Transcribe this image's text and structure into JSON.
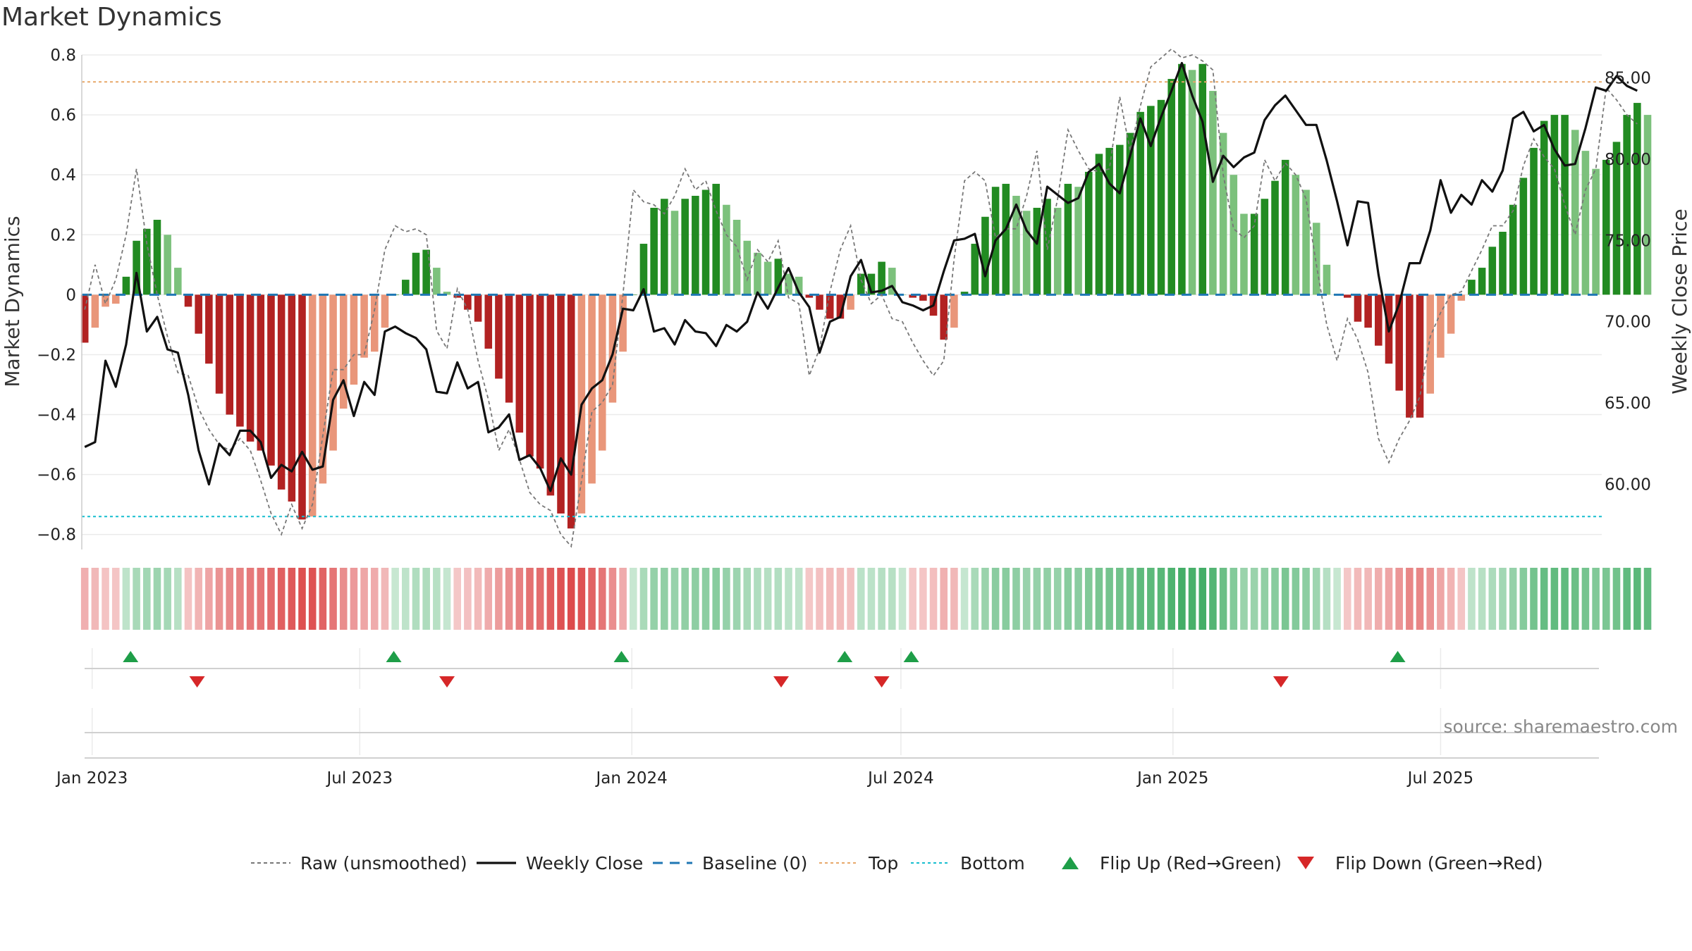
{
  "chart_data": {
    "type": "bar",
    "title": "Market Dynamics",
    "ylabel": "Market Dynamics",
    "y2label": "Weekly Close Price",
    "ylim": [
      -0.85,
      0.8
    ],
    "y2lim": [
      56.0,
      86.4
    ],
    "yticks": [
      -0.8,
      -0.6,
      -0.4,
      -0.2,
      0,
      0.2,
      0.4,
      0.6,
      0.8
    ],
    "ytick_labels": [
      "−0.8",
      "−0.6",
      "−0.4",
      "−0.2",
      "0",
      "0.2",
      "0.4",
      "0.6",
      "0.8"
    ],
    "y2ticks": [
      60,
      65,
      70,
      75,
      80,
      85
    ],
    "y2tick_labels": [
      "60.00",
      "65.00",
      "70.00",
      "75.00",
      "80.00",
      "85.00"
    ],
    "xlim": [
      "2022-12-25",
      "2025-10-18"
    ],
    "xticks": [
      "2023-01-01",
      "2023-07-01",
      "2024-01-01",
      "2024-07-01",
      "2025-01-01",
      "2025-07-01"
    ],
    "xtick_labels": [
      "Jan 2023",
      "Jul 2023",
      "Jan 2024",
      "Jul 2024",
      "Jan 2025",
      "Jul 2025"
    ],
    "grid": true,
    "legend_position": "bottom",
    "start_date": "2022-12-27",
    "week_interval_days": 7,
    "top_level": 0.71,
    "bottom_level": -0.74,
    "series": [
      {
        "name": "Market Dynamics",
        "values": [
          -0.16,
          -0.11,
          -0.04,
          -0.03,
          0.06,
          0.18,
          0.22,
          0.25,
          0.2,
          0.09,
          -0.04,
          -0.13,
          -0.23,
          -0.33,
          -0.4,
          -0.44,
          -0.49,
          -0.52,
          -0.57,
          -0.65,
          -0.69,
          -0.75,
          -0.74,
          -0.63,
          -0.52,
          -0.38,
          -0.3,
          -0.21,
          -0.19,
          -0.11,
          0.0,
          0.05,
          0.14,
          0.15,
          0.09,
          0.01,
          -0.01,
          -0.05,
          -0.09,
          -0.18,
          -0.28,
          -0.36,
          -0.46,
          -0.54,
          -0.58,
          -0.67,
          -0.73,
          -0.78,
          -0.73,
          -0.63,
          -0.52,
          -0.36,
          -0.19,
          0.0,
          0.17,
          0.29,
          0.32,
          0.28,
          0.32,
          0.33,
          0.35,
          0.37,
          0.3,
          0.25,
          0.18,
          0.14,
          0.11,
          0.12,
          0.07,
          0.06,
          -0.01,
          -0.05,
          -0.08,
          -0.08,
          -0.05,
          0.07,
          0.07,
          0.11,
          0.09,
          0.0,
          -0.01,
          -0.02,
          -0.07,
          -0.15,
          -0.11,
          0.01,
          0.17,
          0.26,
          0.36,
          0.37,
          0.33,
          0.28,
          0.29,
          0.32,
          0.29,
          0.37,
          0.36,
          0.41,
          0.47,
          0.49,
          0.5,
          0.54,
          0.61,
          0.63,
          0.65,
          0.72,
          0.77,
          0.75,
          0.77,
          0.68,
          0.54,
          0.4,
          0.27,
          0.27,
          0.32,
          0.38,
          0.45,
          0.4,
          0.35,
          0.24,
          0.1,
          0.0,
          -0.01,
          -0.09,
          -0.11,
          -0.17,
          -0.23,
          -0.32,
          -0.41,
          -0.41,
          -0.33,
          -0.21,
          -0.13,
          -0.02,
          0.05,
          0.09,
          0.16,
          0.21,
          0.3,
          0.39,
          0.49,
          0.58,
          0.6,
          0.6,
          0.55,
          0.48,
          0.42,
          0.45,
          0.51,
          0.6,
          0.64,
          0.6
        ]
      },
      {
        "name": "Raw (unsmoothed)",
        "values": [
          -0.05,
          0.1,
          -0.03,
          0.05,
          0.2,
          0.42,
          0.17,
          0.0,
          -0.14,
          -0.26,
          -0.27,
          -0.38,
          -0.45,
          -0.5,
          -0.52,
          -0.48,
          -0.52,
          -0.62,
          -0.73,
          -0.8,
          -0.7,
          -0.78,
          -0.7,
          -0.47,
          -0.25,
          -0.25,
          -0.2,
          -0.2,
          -0.05,
          0.15,
          0.23,
          0.21,
          0.22,
          0.2,
          -0.12,
          -0.18,
          0.02,
          -0.05,
          -0.22,
          -0.35,
          -0.52,
          -0.45,
          -0.55,
          -0.66,
          -0.7,
          -0.72,
          -0.8,
          -0.84,
          -0.62,
          -0.39,
          -0.36,
          -0.3,
          0.0,
          0.35,
          0.31,
          0.3,
          0.27,
          0.33,
          0.42,
          0.35,
          0.38,
          0.28,
          0.2,
          0.16,
          0.05,
          0.15,
          0.11,
          0.18,
          -0.01,
          -0.03,
          -0.27,
          -0.18,
          0.01,
          0.15,
          0.23,
          0.05,
          -0.03,
          0.0,
          -0.08,
          -0.09,
          -0.16,
          -0.22,
          -0.27,
          -0.22,
          0.12,
          0.38,
          0.41,
          0.38,
          0.19,
          0.22,
          0.22,
          0.33,
          0.48,
          0.15,
          0.32,
          0.55,
          0.48,
          0.42,
          0.41,
          0.42,
          0.66,
          0.48,
          0.63,
          0.76,
          0.79,
          0.82,
          0.79,
          0.8,
          0.78,
          0.75,
          0.4,
          0.22,
          0.19,
          0.23,
          0.45,
          0.38,
          0.44,
          0.4,
          0.32,
          0.1,
          -0.1,
          -0.22,
          -0.08,
          -0.15,
          -0.26,
          -0.48,
          -0.56,
          -0.48,
          -0.42,
          -0.34,
          -0.14,
          -0.06,
          0.0,
          0.01,
          0.08,
          0.15,
          0.23,
          0.23,
          0.28,
          0.43,
          0.52,
          0.46,
          0.42,
          0.3,
          0.2,
          0.35,
          0.42,
          0.69,
          0.65,
          0.6,
          0.57
        ]
      },
      {
        "name": "Weekly Close",
        "axis": "right",
        "values": [
          62.3,
          62.6,
          67.6,
          66.0,
          68.6,
          73.0,
          69.4,
          70.3,
          68.3,
          68.1,
          65.5,
          62.1,
          60.0,
          62.5,
          61.8,
          63.3,
          63.3,
          62.6,
          60.4,
          61.2,
          60.8,
          62.0,
          60.9,
          61.1,
          65.2,
          66.4,
          64.2,
          66.3,
          65.5,
          69.4,
          69.7,
          69.3,
          69.0,
          68.3,
          65.7,
          65.6,
          67.5,
          65.9,
          66.3,
          63.2,
          63.5,
          64.3,
          61.5,
          61.8,
          61.0,
          59.6,
          61.6,
          60.6,
          64.9,
          65.9,
          66.4,
          68.0,
          70.8,
          70.7,
          72.0,
          69.4,
          69.6,
          68.6,
          70.1,
          69.4,
          69.3,
          68.5,
          69.8,
          69.4,
          70.0,
          71.8,
          70.8,
          72.1,
          73.3,
          71.8,
          70.9,
          68.1,
          70.0,
          70.3,
          72.8,
          73.8,
          71.8,
          71.9,
          72.2,
          71.2,
          71.0,
          70.7,
          71.0,
          73.1,
          75.0,
          75.1,
          75.4,
          72.8,
          75.0,
          75.7,
          77.2,
          75.6,
          74.8,
          78.3,
          77.8,
          77.3,
          77.6,
          79.2,
          79.7,
          78.5,
          77.9,
          80.2,
          82.5,
          80.8,
          82.6,
          84.2,
          85.9,
          83.9,
          82.3,
          78.6,
          80.2,
          79.5,
          80.1,
          80.4,
          82.4,
          83.3,
          83.9,
          83.0,
          82.1,
          82.1,
          79.9,
          77.4,
          74.7,
          77.4,
          77.3,
          72.9,
          69.4,
          71.1,
          73.6,
          73.6,
          75.6,
          78.7,
          76.7,
          77.8,
          77.2,
          78.7,
          78.0,
          79.3,
          82.5,
          82.9,
          81.7,
          82.1,
          80.6,
          79.6,
          79.7,
          81.9,
          84.4,
          84.2,
          85.1,
          84.5,
          84.2
        ]
      }
    ],
    "sentiment_strip": "green intensity for positive Market Dynamics weeks, red intensity for negative weeks",
    "flip_up_dates": [
      "2023-01-27",
      "2023-07-24",
      "2023-12-25",
      "2024-05-24",
      "2024-07-08",
      "2025-06-02"
    ],
    "flip_down_dates": [
      "2023-03-13",
      "2023-08-29",
      "2024-04-11",
      "2024-06-18",
      "2025-03-15"
    ],
    "source": "source: sharemaestro.com"
  },
  "colors": {
    "strong_green": "#228B22",
    "light_green": "#7CC17C",
    "strong_red": "#B22222",
    "light_red": "#E9967A",
    "close_line": "#111111",
    "raw_line": "#777777",
    "baseline": "#1F77B4",
    "top_line": "#E8A86A",
    "bottom_line": "#17BECF",
    "flip_up": "#1E9E48",
    "flip_down": "#D62728",
    "grid": "#EBEBEB"
  },
  "legend": [
    {
      "label": "Raw (unsmoothed)",
      "icon": "dashed-gray-line"
    },
    {
      "label": "Weekly Close",
      "icon": "solid-black-line"
    },
    {
      "label": "Baseline (0)",
      "icon": "dashed-blue-line"
    },
    {
      "label": "Top",
      "icon": "dotted-orange-line"
    },
    {
      "label": "Bottom",
      "icon": "dotted-cyan-line"
    },
    {
      "label": "Flip Up (Red→Green)",
      "icon": "triangle-up-green"
    },
    {
      "label": "Flip Down (Green→Red)",
      "icon": "triangle-down-red"
    }
  ]
}
